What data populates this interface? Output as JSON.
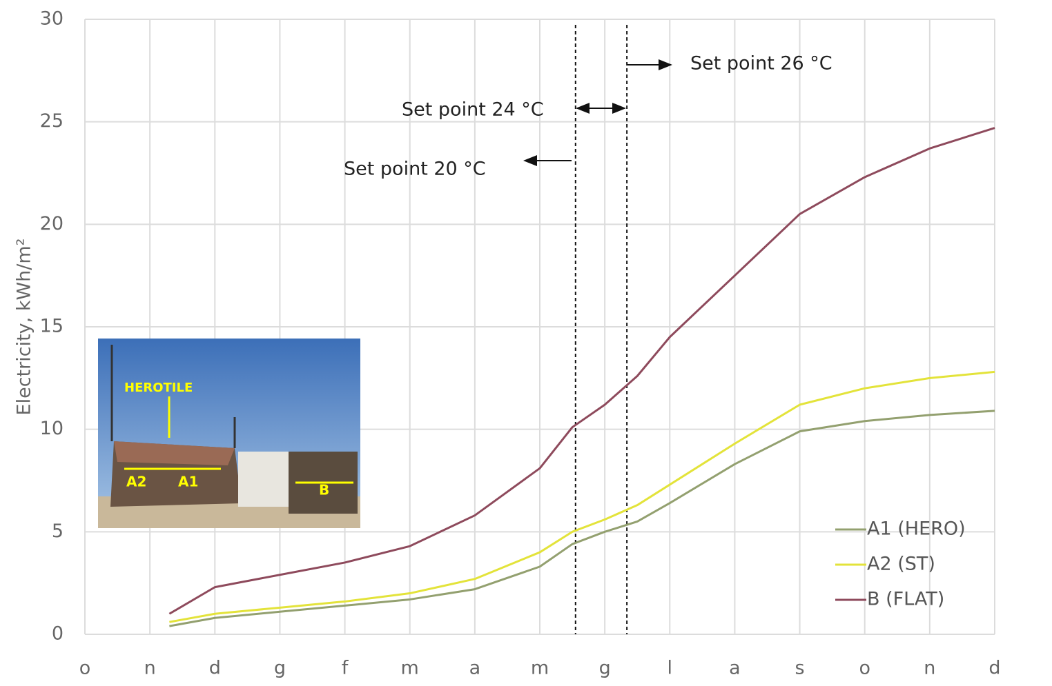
{
  "chart_data": {
    "type": "line",
    "ylabel": "Electricity, kWh/m²",
    "xlim": [
      0,
      14
    ],
    "xticks": [
      {
        "value": 0,
        "label": "o"
      },
      {
        "value": 1,
        "label": "n"
      },
      {
        "value": 2,
        "label": "d"
      },
      {
        "value": 3,
        "label": "g"
      },
      {
        "value": 4,
        "label": "f"
      },
      {
        "value": 5,
        "label": "m"
      },
      {
        "value": 6,
        "label": "a"
      },
      {
        "value": 7,
        "label": "m"
      },
      {
        "value": 8,
        "label": "g"
      },
      {
        "value": 9,
        "label": "l"
      },
      {
        "value": 10,
        "label": "a"
      },
      {
        "value": 11,
        "label": "s"
      },
      {
        "value": 12,
        "label": "o"
      },
      {
        "value": 13,
        "label": "n"
      },
      {
        "value": 14,
        "label": "d"
      }
    ],
    "ylim": [
      0,
      30
    ],
    "yticks": [
      0,
      5,
      10,
      15,
      20,
      25,
      30
    ],
    "grid": true,
    "legend": "lower right",
    "x": [
      1.3,
      2,
      3,
      4,
      5,
      6,
      7,
      7.5,
      8,
      8.5,
      9,
      10,
      11,
      12,
      13,
      14
    ],
    "series": [
      {
        "name": "A1 (HERO)",
        "color": "#93a06f",
        "values": [
          0.4,
          0.8,
          1.1,
          1.4,
          1.7,
          2.2,
          3.3,
          4.4,
          5.0,
          5.5,
          6.4,
          8.3,
          9.9,
          10.4,
          10.7,
          10.9
        ]
      },
      {
        "name": "A2 (ST)",
        "color": "#e3e33a",
        "values": [
          0.6,
          1.0,
          1.3,
          1.6,
          2.0,
          2.7,
          4.0,
          5.0,
          5.6,
          6.3,
          7.3,
          9.3,
          11.2,
          12.0,
          12.5,
          12.8
        ]
      },
      {
        "name": "B (FLAT)",
        "color": "#8e4a5c",
        "values": [
          1.0,
          2.3,
          2.9,
          3.5,
          4.3,
          5.8,
          8.1,
          10.1,
          11.2,
          12.6,
          14.5,
          17.5,
          20.5,
          22.3,
          23.7,
          24.7
        ]
      }
    ],
    "vlines": [
      7.55,
      8.34
    ],
    "annotations": [
      "Set point 26 °C",
      "Set point 24 °C",
      "Set point 20 °C"
    ],
    "inset_labels": [
      "HEROTILE",
      "A2",
      "A1",
      "B"
    ]
  }
}
